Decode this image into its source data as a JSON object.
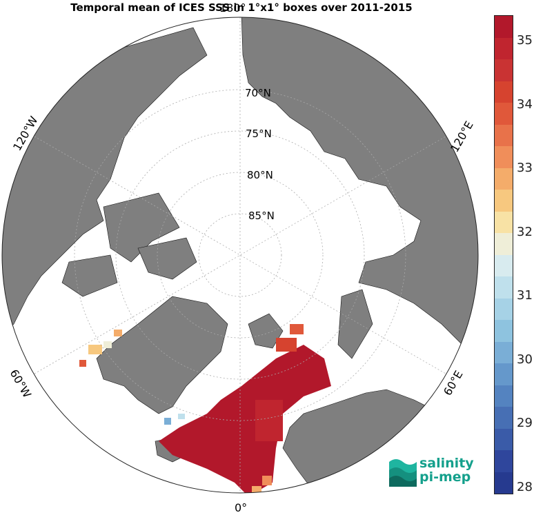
{
  "title": "Temporal mean of ICES SSS in 1°x1° boxes over 2011-2015",
  "lat_labels": [
    "70°N",
    "75°N",
    "80°N",
    "85°N"
  ],
  "lon_labels": {
    "top": "180°",
    "left_top": "120°W",
    "right_top": "120°E",
    "left_bottom": "60°W",
    "right_bottom": "60°E",
    "bottom": "0°"
  },
  "colorbar": {
    "ticks": [
      "35",
      "34",
      "33",
      "32",
      "31",
      "30",
      "29",
      "28"
    ],
    "min": 28,
    "max": 35.5,
    "colors": [
      "#b2182b",
      "#c0252f",
      "#c93333",
      "#d6432f",
      "#e0583a",
      "#e8724a",
      "#f08e5a",
      "#f4ac6a",
      "#f7c87f",
      "#f8e2a5",
      "#efeed8",
      "#d8ebef",
      "#bfe0ec",
      "#a6d2e6",
      "#8ec3df",
      "#7aaed6",
      "#6598cb",
      "#5483c0",
      "#476fb4",
      "#3a5ba8",
      "#2f469c",
      "#263a8f"
    ]
  },
  "logo": {
    "line1": "salinity",
    "line2": "pi-mep"
  }
}
